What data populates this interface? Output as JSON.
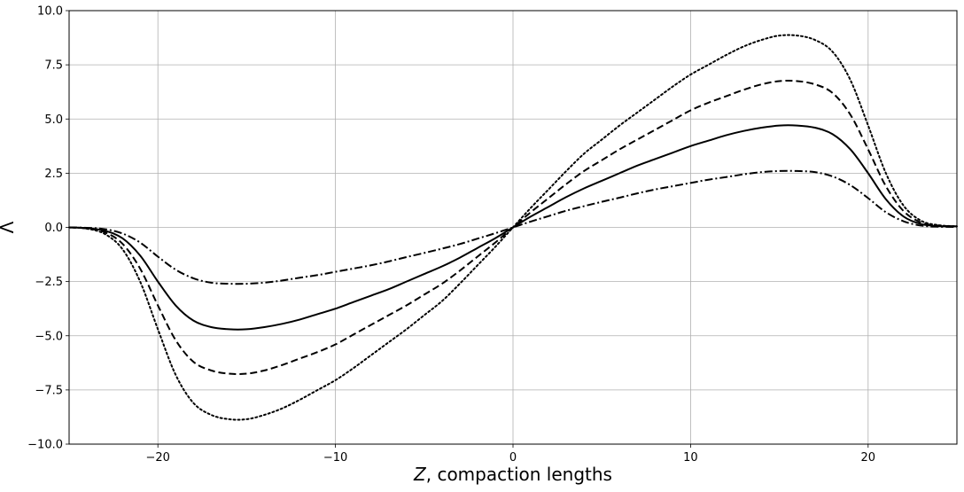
{
  "chart_data": {
    "type": "line",
    "title": "",
    "xlabel_var": "Z",
    "xlabel_rest": ", compaction lengths",
    "ylabel": "Λ",
    "xlim": [
      -25,
      25
    ],
    "ylim": [
      -10,
      10
    ],
    "xticks": [
      -20,
      -10,
      0,
      10,
      20
    ],
    "xtick_labels": [
      "−20",
      "−10",
      "0",
      "10",
      "20"
    ],
    "yticks": [
      -10,
      -7.5,
      -5,
      -2.5,
      0,
      2.5,
      5,
      7.5,
      10
    ],
    "ytick_labels": [
      "−10.0",
      "−7.5",
      "−5.0",
      "−2.5",
      "0.0",
      "2.5",
      "5.0",
      "7.5",
      "10.0"
    ],
    "grid": true,
    "legend": "none",
    "x": [
      -25,
      -24,
      -23,
      -22,
      -21,
      -20,
      -19,
      -18,
      -17,
      -16,
      -15,
      -14,
      -13,
      -12,
      -11,
      -10,
      -9,
      -8,
      -7,
      -6,
      -5,
      -4,
      -3,
      -2,
      -1,
      0,
      1,
      2,
      3,
      4,
      5,
      6,
      7,
      8,
      9,
      10,
      11,
      12,
      13,
      14,
      15,
      16,
      17,
      18,
      19,
      20,
      21,
      22,
      23,
      24,
      25
    ],
    "series": [
      {
        "style": "solid",
        "color": "#000000",
        "values": [
          0,
          -0.03,
          -0.15,
          -0.5,
          -1.3,
          -2.5,
          -3.6,
          -4.3,
          -4.6,
          -4.7,
          -4.7,
          -4.6,
          -4.45,
          -4.25,
          -4.0,
          -3.75,
          -3.45,
          -3.15,
          -2.85,
          -2.5,
          -2.15,
          -1.8,
          -1.4,
          -0.95,
          -0.5,
          0,
          0.5,
          0.95,
          1.4,
          1.8,
          2.15,
          2.5,
          2.85,
          3.15,
          3.45,
          3.75,
          4.0,
          4.25,
          4.45,
          4.6,
          4.7,
          4.7,
          4.6,
          4.3,
          3.6,
          2.5,
          1.3,
          0.5,
          0.15,
          0.06,
          0.05
        ]
      },
      {
        "style": "dashed",
        "color": "#000000",
        "values": [
          0,
          -0.05,
          -0.22,
          -0.75,
          -1.9,
          -3.6,
          -5.2,
          -6.2,
          -6.6,
          -6.75,
          -6.75,
          -6.6,
          -6.35,
          -6.05,
          -5.75,
          -5.4,
          -4.95,
          -4.5,
          -4.05,
          -3.6,
          -3.1,
          -2.6,
          -2.0,
          -1.35,
          -0.7,
          0,
          0.7,
          1.35,
          2.0,
          2.6,
          3.1,
          3.6,
          4.05,
          4.5,
          4.95,
          5.4,
          5.75,
          6.05,
          6.35,
          6.6,
          6.75,
          6.75,
          6.6,
          6.2,
          5.2,
          3.6,
          1.9,
          0.75,
          0.22,
          0.08,
          0.05
        ]
      },
      {
        "style": "dotted",
        "color": "#000000",
        "values": [
          0,
          -0.06,
          -0.3,
          -1.0,
          -2.5,
          -4.7,
          -6.8,
          -8.1,
          -8.65,
          -8.85,
          -8.85,
          -8.65,
          -8.35,
          -7.95,
          -7.5,
          -7.05,
          -6.5,
          -5.9,
          -5.3,
          -4.7,
          -4.05,
          -3.4,
          -2.6,
          -1.75,
          -0.9,
          0,
          0.9,
          1.75,
          2.6,
          3.4,
          4.05,
          4.7,
          5.3,
          5.9,
          6.5,
          7.05,
          7.5,
          7.95,
          8.35,
          8.65,
          8.85,
          8.85,
          8.65,
          8.1,
          6.8,
          4.7,
          2.5,
          1.0,
          0.3,
          0.1,
          0.05
        ]
      },
      {
        "style": "dashdot",
        "color": "#000000",
        "values": [
          0,
          -0.02,
          -0.08,
          -0.28,
          -0.7,
          -1.35,
          -1.95,
          -2.35,
          -2.55,
          -2.6,
          -2.6,
          -2.55,
          -2.45,
          -2.32,
          -2.2,
          -2.05,
          -1.9,
          -1.75,
          -1.57,
          -1.37,
          -1.18,
          -0.98,
          -0.77,
          -0.52,
          -0.27,
          0,
          0.27,
          0.52,
          0.77,
          0.98,
          1.18,
          1.37,
          1.57,
          1.75,
          1.9,
          2.05,
          2.2,
          2.32,
          2.45,
          2.55,
          2.6,
          2.6,
          2.55,
          2.35,
          1.95,
          1.35,
          0.7,
          0.28,
          0.08,
          0.03,
          0.02
        ]
      }
    ]
  }
}
